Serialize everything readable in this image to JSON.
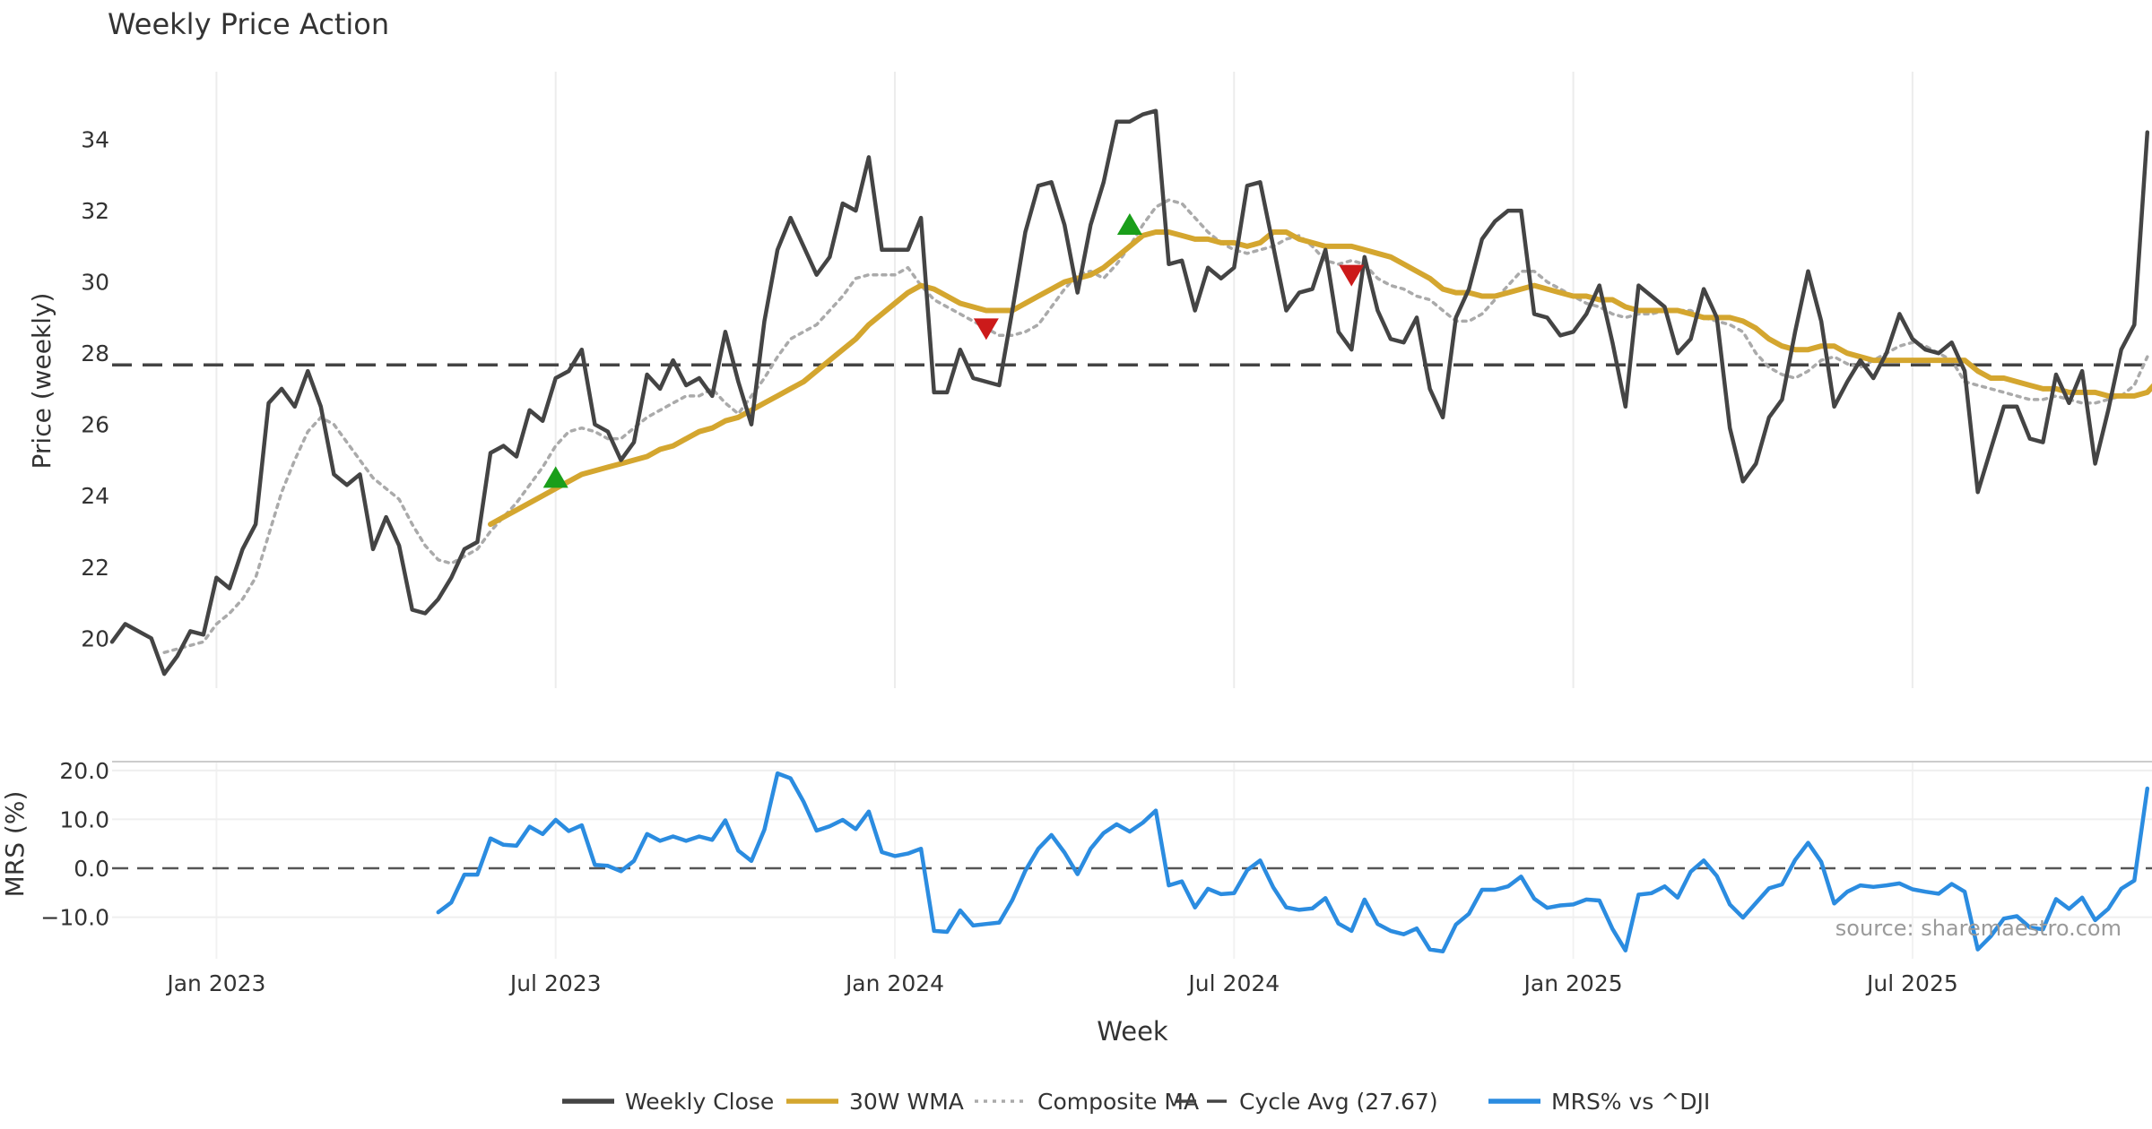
{
  "chart_data": [
    {
      "type": "line",
      "title": "Weekly Price Action",
      "xlabel": "",
      "ylabel": "Price (weekly)",
      "ylim": [
        18.6,
        35.9
      ],
      "yticks": [
        20,
        22,
        24,
        26,
        28,
        30,
        32,
        34
      ],
      "x_ticks": [
        "Jan 2023",
        "Jul 2023",
        "Jan 2024",
        "Jul 2024",
        "Jan 2025",
        "Jul 2025"
      ],
      "x_tick_weeks": [
        8,
        34,
        60,
        86,
        112,
        138
      ],
      "grid": true,
      "cycle_average": 27.67,
      "series": [
        {
          "name": "Weekly Close",
          "color": "#444444",
          "start_week": 0,
          "values": [
            19.9,
            20.4,
            20.2,
            20.0,
            19.0,
            19.5,
            20.2,
            20.1,
            21.7,
            21.4,
            22.5,
            23.2,
            26.6,
            27.0,
            26.5,
            27.5,
            26.5,
            24.6,
            24.3,
            24.6,
            22.5,
            23.4,
            22.6,
            20.8,
            20.7,
            21.1,
            21.7,
            22.5,
            22.7,
            25.2,
            25.4,
            25.1,
            26.4,
            26.1,
            27.3,
            27.5,
            28.1,
            26.0,
            25.8,
            25.0,
            25.5,
            27.4,
            27.0,
            27.8,
            27.1,
            27.3,
            26.8,
            28.6,
            27.2,
            26.0,
            28.9,
            30.9,
            31.8,
            31.0,
            30.2,
            30.7,
            32.2,
            32.0,
            33.5,
            30.9,
            30.9,
            30.9,
            31.8,
            26.9,
            26.9,
            28.1,
            27.3,
            27.2,
            27.1,
            29.2,
            31.4,
            32.7,
            32.8,
            31.6,
            29.7,
            31.6,
            32.8,
            34.5,
            34.5,
            34.7,
            34.8,
            30.5,
            30.6,
            29.2,
            30.4,
            30.1,
            30.4,
            32.7,
            32.8,
            31.0,
            29.2,
            29.7,
            29.8,
            30.9,
            28.6,
            28.1,
            30.7,
            29.2,
            28.4,
            28.3,
            29.0,
            27.0,
            26.2,
            29.0,
            29.8,
            31.2,
            31.7,
            32.0,
            32.0,
            29.1,
            29.0,
            28.5,
            28.6,
            29.1,
            29.9,
            28.3,
            26.5,
            29.9,
            29.6,
            29.3,
            28.0,
            28.4,
            29.8,
            29.0,
            25.9,
            24.4,
            24.9,
            26.2,
            26.7,
            28.6,
            30.3,
            28.9,
            26.5,
            27.2,
            27.8,
            27.3,
            28.0,
            29.1,
            28.4,
            28.1,
            28.0,
            28.3,
            27.5,
            24.1,
            25.3,
            26.5,
            26.5,
            25.6,
            25.5,
            27.4,
            26.6,
            27.5,
            24.9,
            26.4,
            28.1,
            28.8,
            34.2
          ]
        },
        {
          "name": "30W WMA",
          "color": "#D4A62F",
          "start_week": 29,
          "values": [
            23.2,
            23.4,
            23.6,
            23.8,
            24.0,
            24.2,
            24.4,
            24.6,
            24.7,
            24.8,
            24.9,
            25.0,
            25.1,
            25.3,
            25.4,
            25.6,
            25.8,
            25.9,
            26.1,
            26.2,
            26.4,
            26.6,
            26.8,
            27.0,
            27.2,
            27.5,
            27.8,
            28.1,
            28.4,
            28.8,
            29.1,
            29.4,
            29.7,
            29.9,
            29.8,
            29.6,
            29.4,
            29.3,
            29.2,
            29.2,
            29.2,
            29.4,
            29.6,
            29.8,
            30.0,
            30.1,
            30.2,
            30.4,
            30.7,
            31.0,
            31.3,
            31.4,
            31.4,
            31.3,
            31.2,
            31.2,
            31.1,
            31.1,
            31.0,
            31.1,
            31.4,
            31.4,
            31.2,
            31.1,
            31.0,
            31.0,
            31.0,
            30.9,
            30.8,
            30.7,
            30.5,
            30.3,
            30.1,
            29.8,
            29.7,
            29.7,
            29.6,
            29.6,
            29.7,
            29.8,
            29.9,
            29.8,
            29.7,
            29.6,
            29.6,
            29.5,
            29.5,
            29.3,
            29.2,
            29.2,
            29.2,
            29.2,
            29.1,
            29.0,
            29.0,
            29.0,
            28.9,
            28.7,
            28.4,
            28.2,
            28.1,
            28.1,
            28.2,
            28.2,
            28.0,
            27.9,
            27.8,
            27.8,
            27.8,
            27.8,
            27.8,
            27.8,
            27.8,
            27.8,
            27.5,
            27.3,
            27.3,
            27.2,
            27.1,
            27.0,
            27.0,
            26.9,
            26.9,
            26.9,
            26.8,
            26.8,
            26.8,
            26.9,
            27.3
          ]
        },
        {
          "name": "Composite MA",
          "color": "#aaaaaa",
          "start_week": 4,
          "values": [
            19.6,
            19.7,
            19.8,
            19.9,
            20.4,
            20.7,
            21.1,
            21.7,
            22.9,
            24.1,
            25.0,
            25.8,
            26.2,
            26.0,
            25.5,
            25.0,
            24.5,
            24.2,
            23.9,
            23.2,
            22.6,
            22.2,
            22.1,
            22.3,
            22.5,
            23.0,
            23.4,
            23.8,
            24.3,
            24.8,
            25.4,
            25.8,
            25.9,
            25.8,
            25.6,
            25.6,
            25.9,
            26.2,
            26.4,
            26.6,
            26.8,
            26.8,
            27.0,
            26.6,
            26.3,
            26.8,
            27.3,
            27.9,
            28.4,
            28.6,
            28.8,
            29.2,
            29.6,
            30.1,
            30.2,
            30.2,
            30.2,
            30.4,
            29.9,
            29.5,
            29.3,
            29.1,
            28.9,
            28.7,
            28.5,
            28.5,
            28.6,
            28.8,
            29.3,
            29.8,
            30.2,
            30.3,
            30.1,
            30.5,
            31.0,
            31.6,
            32.1,
            32.3,
            32.2,
            31.8,
            31.4,
            31.1,
            30.9,
            30.8,
            30.9,
            31.0,
            31.2,
            31.3,
            31.0,
            30.6,
            30.5,
            30.6,
            30.5,
            30.1,
            29.9,
            29.8,
            29.6,
            29.5,
            29.2,
            28.9,
            28.9,
            29.1,
            29.5,
            29.9,
            30.3,
            30.3,
            30.0,
            29.8,
            29.6,
            29.4,
            29.3,
            29.1,
            29.0,
            29.1,
            29.1,
            29.2,
            29.2,
            29.2,
            29.0,
            28.9,
            28.8,
            28.6,
            28.0,
            27.6,
            27.4,
            27.3,
            27.5,
            27.8,
            27.9,
            27.7,
            27.6,
            27.8,
            28.0,
            28.2,
            28.3,
            28.2,
            28.0,
            27.8,
            27.2,
            27.1,
            27.0,
            26.9,
            26.8,
            26.7,
            26.7,
            26.8,
            26.7,
            26.6,
            26.6,
            26.7,
            26.8,
            27.1,
            27.9
          ]
        },
        {
          "name": "Cycle Avg (27.67)",
          "color": "#444444",
          "constant": 27.67
        }
      ],
      "buy_markers": [
        {
          "week": 34,
          "value": 24.5
        },
        {
          "week": 78,
          "value": 31.6
        }
      ],
      "sell_markers": [
        {
          "week": 67,
          "value": 28.7
        },
        {
          "week": 95,
          "value": 30.2
        }
      ]
    },
    {
      "type": "line",
      "title": "",
      "xlabel": "Week",
      "ylabel": "MRS (%)",
      "ylim": [
        -18.5,
        21.8
      ],
      "yticks": [
        -10,
        0,
        10,
        20
      ],
      "ytick_labels": [
        "−10.0",
        "0.0",
        "10.0",
        "20.0"
      ],
      "zero_line": 0,
      "series": [
        {
          "name": "MRS% vs ^DJI",
          "color": "#2B8CE0",
          "start_week": 25,
          "values": [
            -9.0,
            -7.0,
            -1.3,
            -1.3,
            6.1,
            4.8,
            4.6,
            8.5,
            7.0,
            9.9,
            7.6,
            8.8,
            0.7,
            0.5,
            -0.6,
            1.5,
            7.0,
            5.6,
            6.5,
            5.6,
            6.5,
            5.8,
            9.8,
            3.6,
            1.5,
            7.9,
            19.4,
            18.4,
            13.6,
            7.7,
            8.6,
            9.9,
            8.0,
            11.6,
            3.3,
            2.5,
            3.0,
            4.0,
            -12.8,
            -13.0,
            -8.6,
            -11.7,
            -11.4,
            -11.1,
            -6.5,
            -0.5,
            4.0,
            6.8,
            3.2,
            -1.2,
            4.0,
            7.2,
            9.0,
            7.5,
            9.3,
            11.8,
            -3.5,
            -2.7,
            -8.0,
            -4.2,
            -5.3,
            -5.1,
            -0.4,
            1.6,
            -3.9,
            -8.0,
            -8.5,
            -8.2,
            -6.1,
            -11.3,
            -12.8,
            -6.4,
            -11.4,
            -12.8,
            -13.5,
            -12.3,
            -16.6,
            -17.0,
            -11.5,
            -9.3,
            -4.4,
            -4.4,
            -3.7,
            -1.7,
            -6.2,
            -8.1,
            -7.6,
            -7.4,
            -6.4,
            -6.6,
            -12.4,
            -16.8,
            -5.4,
            -5.1,
            -3.7,
            -6.0,
            -0.7,
            1.6,
            -1.6,
            -7.4,
            -10.1,
            -7.1,
            -4.1,
            -3.3,
            1.7,
            5.2,
            1.3,
            -7.2,
            -4.8,
            -3.5,
            -3.8,
            -3.5,
            -3.1,
            -4.3,
            -4.8,
            -5.2,
            -3.2,
            -4.8,
            -16.6,
            -13.9,
            -10.3,
            -9.8,
            -12.1,
            -12.5,
            -6.3,
            -8.3,
            -6.0,
            -10.6,
            -8.3,
            -4.2,
            -2.5,
            16.3
          ]
        }
      ]
    }
  ],
  "watermark": "source: sharemaestro.com",
  "legend": [
    {
      "label": "Weekly Close",
      "style": "solid",
      "color": "#444444"
    },
    {
      "label": "30W WMA",
      "style": "solid",
      "color": "#D4A62F"
    },
    {
      "label": "Composite MA",
      "style": "dotted",
      "color": "#aaaaaa"
    },
    {
      "label": "Cycle Avg (27.67)",
      "style": "dashed",
      "color": "#444444"
    },
    {
      "label": "MRS% vs ^DJI",
      "style": "solid",
      "color": "#2B8CE0"
    }
  ]
}
